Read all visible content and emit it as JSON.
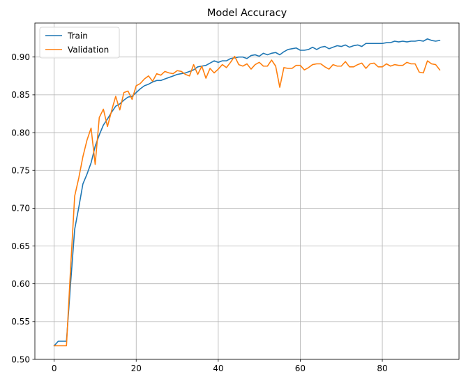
{
  "chart_data": {
    "type": "line",
    "title": "Model Accuracy",
    "xlabel": "",
    "ylabel": "",
    "xlim": [
      -4.7,
      98.7
    ],
    "ylim": [
      0.5,
      0.945
    ],
    "xticks": [
      0,
      20,
      40,
      60,
      80
    ],
    "yticks": [
      0.5,
      0.55,
      0.6,
      0.65,
      0.7,
      0.75,
      0.8,
      0.85,
      0.9
    ],
    "ytick_labels": [
      "0.50",
      "0.55",
      "0.60",
      "0.65",
      "0.70",
      "0.75",
      "0.80",
      "0.85",
      "0.90"
    ],
    "grid": true,
    "legend_position": "upper-left",
    "series": [
      {
        "name": "Train",
        "color": "#1f77b4",
        "x": [
          0,
          1,
          2,
          3,
          4,
          5,
          6,
          7,
          8,
          9,
          10,
          11,
          12,
          13,
          14,
          15,
          16,
          17,
          18,
          19,
          20,
          21,
          22,
          23,
          24,
          25,
          26,
          27,
          28,
          29,
          30,
          31,
          32,
          33,
          34,
          35,
          36,
          37,
          38,
          39,
          40,
          41,
          42,
          43,
          44,
          45,
          46,
          47,
          48,
          49,
          50,
          51,
          52,
          53,
          54,
          55,
          56,
          57,
          58,
          59,
          60,
          61,
          62,
          63,
          64,
          65,
          66,
          67,
          68,
          69,
          70,
          71,
          72,
          73,
          74,
          75,
          76,
          77,
          78,
          79,
          80,
          81,
          82,
          83,
          84,
          85,
          86,
          87,
          88,
          89,
          90,
          91,
          92,
          93,
          94
        ],
        "values": [
          0.518,
          0.524,
          0.524,
          0.524,
          0.6,
          0.672,
          0.701,
          0.732,
          0.745,
          0.76,
          0.782,
          0.797,
          0.81,
          0.818,
          0.827,
          0.835,
          0.838,
          0.843,
          0.847,
          0.848,
          0.853,
          0.858,
          0.862,
          0.864,
          0.867,
          0.869,
          0.869,
          0.871,
          0.873,
          0.875,
          0.877,
          0.878,
          0.879,
          0.881,
          0.883,
          0.887,
          0.888,
          0.889,
          0.892,
          0.895,
          0.893,
          0.895,
          0.895,
          0.898,
          0.899,
          0.9,
          0.9,
          0.898,
          0.902,
          0.903,
          0.901,
          0.905,
          0.903,
          0.905,
          0.906,
          0.903,
          0.907,
          0.91,
          0.911,
          0.912,
          0.909,
          0.909,
          0.91,
          0.913,
          0.91,
          0.913,
          0.914,
          0.911,
          0.913,
          0.915,
          0.914,
          0.916,
          0.913,
          0.915,
          0.916,
          0.914,
          0.918,
          0.918,
          0.918,
          0.918,
          0.918,
          0.919,
          0.919,
          0.921,
          0.92,
          0.921,
          0.92,
          0.921,
          0.921,
          0.922,
          0.921,
          0.924,
          0.922,
          0.921,
          0.922
        ]
      },
      {
        "name": "Validation",
        "color": "#ff7f0e",
        "x": [
          0,
          1,
          2,
          3,
          4,
          5,
          6,
          7,
          8,
          9,
          10,
          11,
          12,
          13,
          14,
          15,
          16,
          17,
          18,
          19,
          20,
          21,
          22,
          23,
          24,
          25,
          26,
          27,
          28,
          29,
          30,
          31,
          32,
          33,
          34,
          35,
          36,
          37,
          38,
          39,
          40,
          41,
          42,
          43,
          44,
          45,
          46,
          47,
          48,
          49,
          50,
          51,
          52,
          53,
          54,
          55,
          56,
          57,
          58,
          59,
          60,
          61,
          62,
          63,
          64,
          65,
          66,
          67,
          68,
          69,
          70,
          71,
          72,
          73,
          74,
          75,
          76,
          77,
          78,
          79,
          80,
          81,
          82,
          83,
          84,
          85,
          86,
          87,
          88,
          89,
          90,
          91,
          92,
          93,
          94
        ],
        "values": [
          0.518,
          0.518,
          0.518,
          0.518,
          0.62,
          0.716,
          0.74,
          0.768,
          0.79,
          0.806,
          0.758,
          0.82,
          0.831,
          0.808,
          0.829,
          0.848,
          0.83,
          0.853,
          0.855,
          0.844,
          0.862,
          0.865,
          0.871,
          0.875,
          0.868,
          0.878,
          0.876,
          0.881,
          0.879,
          0.878,
          0.882,
          0.881,
          0.877,
          0.875,
          0.89,
          0.877,
          0.888,
          0.872,
          0.885,
          0.879,
          0.884,
          0.89,
          0.886,
          0.893,
          0.901,
          0.89,
          0.888,
          0.891,
          0.884,
          0.89,
          0.893,
          0.888,
          0.888,
          0.896,
          0.888,
          0.86,
          0.886,
          0.885,
          0.885,
          0.889,
          0.889,
          0.883,
          0.886,
          0.89,
          0.891,
          0.891,
          0.887,
          0.884,
          0.89,
          0.888,
          0.888,
          0.894,
          0.887,
          0.887,
          0.89,
          0.892,
          0.885,
          0.891,
          0.892,
          0.887,
          0.887,
          0.891,
          0.888,
          0.89,
          0.889,
          0.889,
          0.893,
          0.891,
          0.891,
          0.88,
          0.879,
          0.895,
          0.891,
          0.89,
          0.883
        ]
      }
    ]
  }
}
